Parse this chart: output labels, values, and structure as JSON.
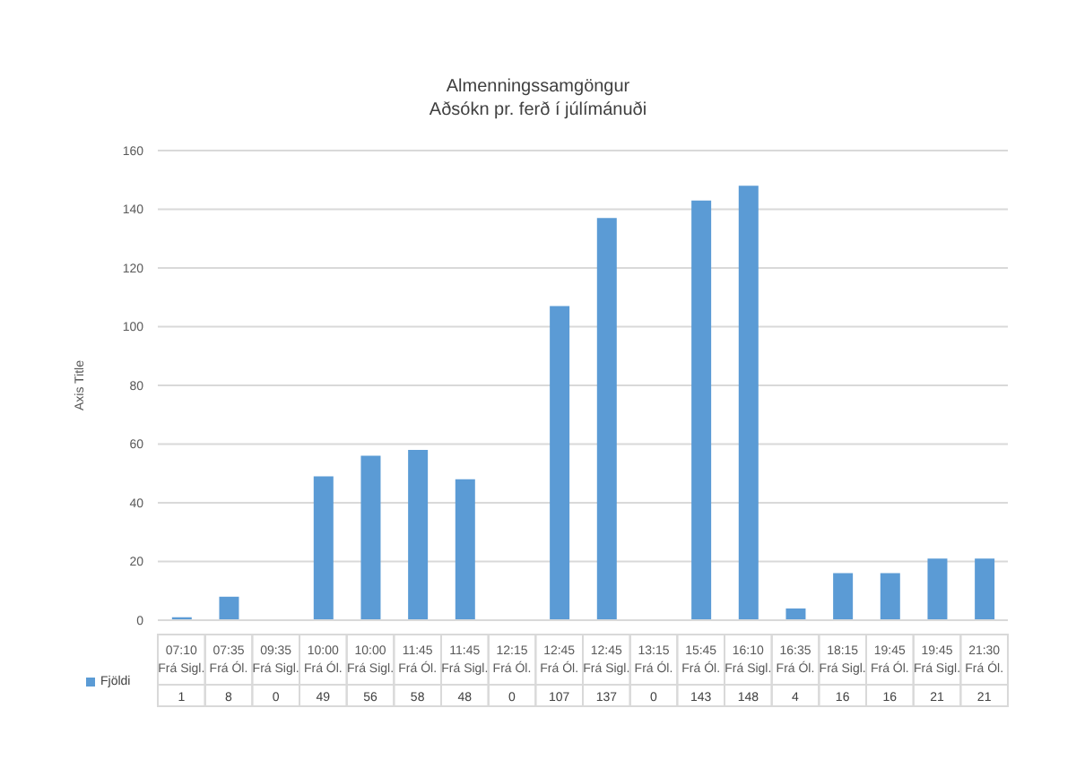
{
  "chart_data": {
    "type": "bar",
    "title": "Almenningssamgöngur",
    "subtitle": "Aðsókn pr. ferð í júlímánuði",
    "ylabel": "Axis Title",
    "categories": [
      "07:10\nFrá Sigl.",
      "07:35\nFrá Ól.",
      "09:35\nFrá Sigl.",
      "10:00\nFrá Ól.",
      "10:00\nFrá Sigl.",
      "11:45\nFrá Ól.",
      "11:45\nFrá Sigl.",
      "12:15\nFrá Ól.",
      "12:45\nFrá Ól.",
      "12:45\nFrá Sigl.",
      "13:15\nFrá Ól.",
      "15:45\nFrá Ól.",
      "16:10\nFrá Sigl.",
      "16:35\nFrá Ól.",
      "18:15\nFrá Sigl.",
      "19:45\nFrá Ól.",
      "19:45\nFrá Sigl.",
      "21:30\nFrá Ól."
    ],
    "series": [
      {
        "name": "Fjöldi",
        "color": "#5b9bd5",
        "values": [
          1,
          8,
          0,
          49,
          56,
          58,
          48,
          0,
          107,
          137,
          0,
          143,
          148,
          4,
          16,
          16,
          21,
          21
        ]
      }
    ],
    "ylim": [
      0,
      160
    ],
    "yticks": [
      0,
      20,
      40,
      60,
      80,
      100,
      120,
      140,
      160
    ],
    "grid": "y",
    "data_labels": true,
    "legend": "bottom"
  }
}
